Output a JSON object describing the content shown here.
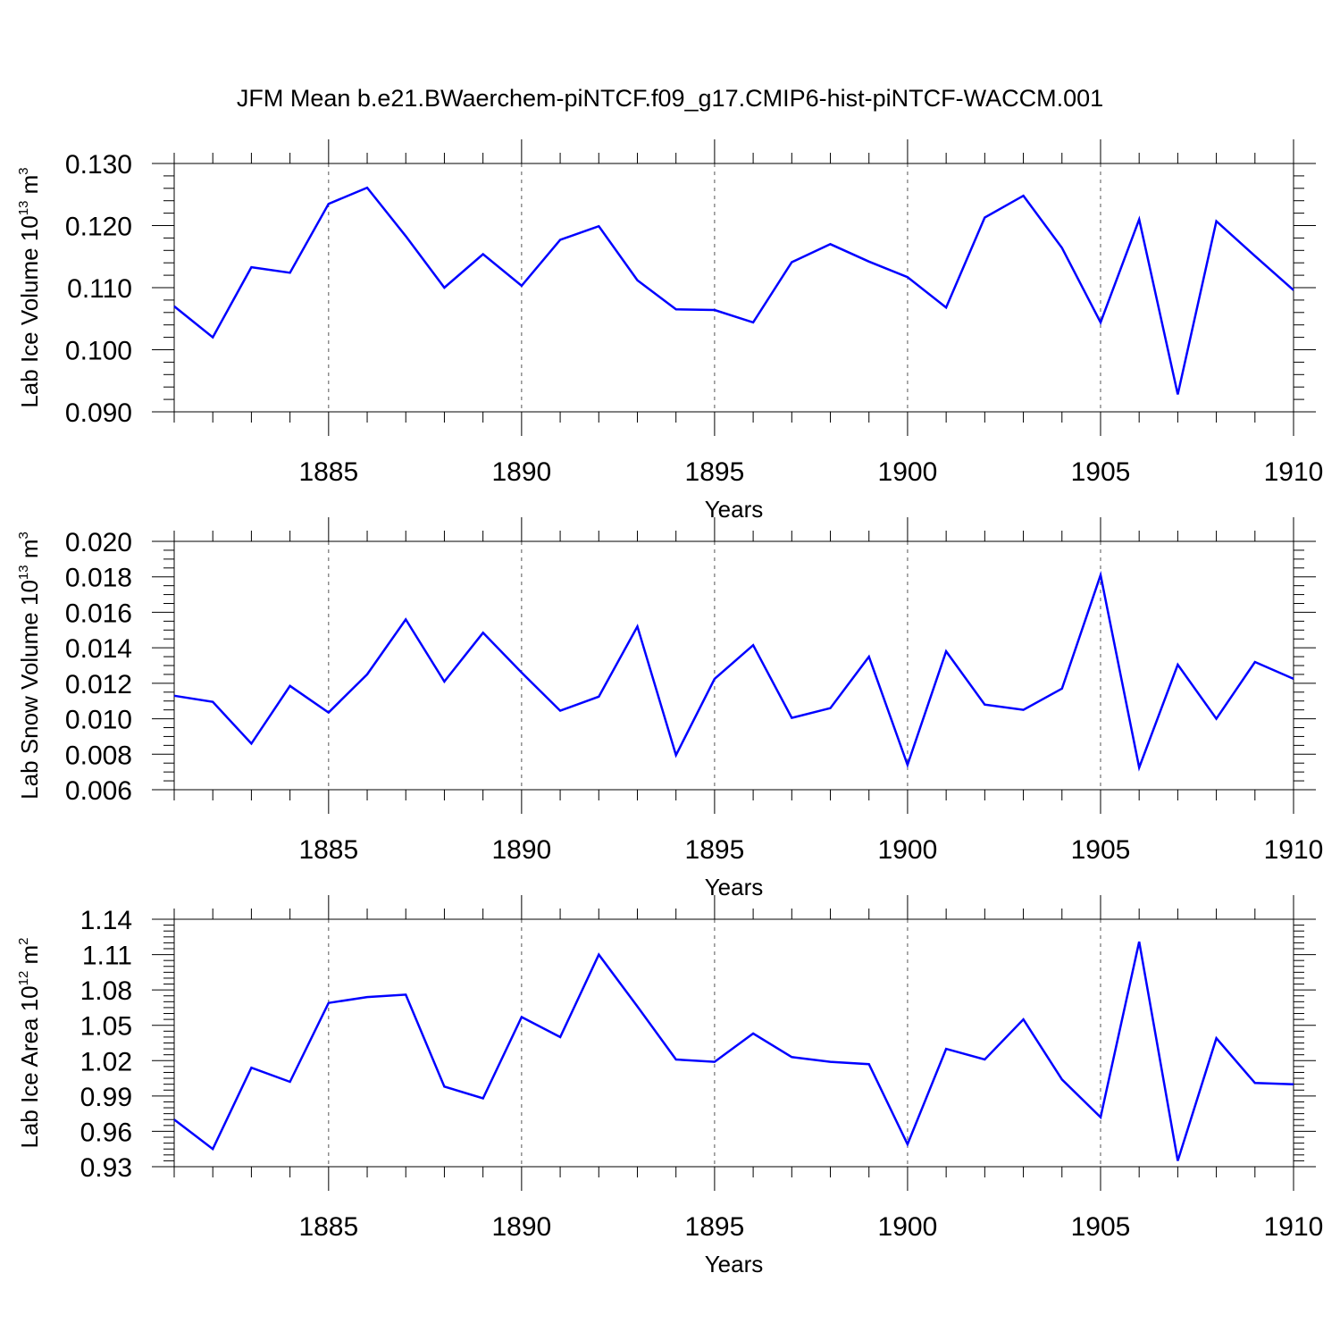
{
  "chart_data": {
    "title": "JFM Mean b.e21.BWaerchem-piNTCF.f09_g17.CMIP6-hist-piNTCF-WACCM.001",
    "type": "line",
    "line_color": "#0000ff",
    "years": [
      1881,
      1882,
      1883,
      1884,
      1885,
      1886,
      1887,
      1888,
      1889,
      1890,
      1891,
      1892,
      1893,
      1894,
      1895,
      1896,
      1897,
      1898,
      1899,
      1900,
      1901,
      1902,
      1903,
      1904,
      1905,
      1906,
      1907,
      1908,
      1909,
      1910
    ],
    "panels": [
      {
        "name": "ice-volume",
        "ylabel_prefix": "Lab Ice Volume 10",
        "ylabel_exponent": "13",
        "ylabel_unit": " m",
        "ylabel_unit_exponent": "3",
        "xlabel": "Years",
        "xlim": [
          1881,
          1910
        ],
        "ylim": [
          0.09,
          0.13
        ],
        "yticks": [
          "0.090",
          "0.100",
          "0.110",
          "0.120",
          "0.130"
        ],
        "ytick_values": [
          0.09,
          0.1,
          0.11,
          0.12,
          0.13
        ],
        "xticks": [
          "1885",
          "1890",
          "1895",
          "1900",
          "1905",
          "1910"
        ],
        "xtick_values": [
          1885,
          1890,
          1895,
          1900,
          1905,
          1910
        ],
        "values": [
          0.107,
          0.102,
          0.1133,
          0.1124,
          0.1235,
          0.1261,
          0.1183,
          0.11,
          0.1154,
          0.1103,
          0.1177,
          0.1199,
          0.1112,
          0.1065,
          0.1064,
          0.1044,
          0.1141,
          0.117,
          0.1142,
          0.1117,
          0.1068,
          0.1213,
          0.1248,
          0.1164,
          0.1044,
          0.121,
          0.0928,
          0.1207,
          0.1151,
          0.1096
        ]
      },
      {
        "name": "snow-volume",
        "ylabel_prefix": "Lab Snow Volume 10",
        "ylabel_exponent": "13",
        "ylabel_unit": " m",
        "ylabel_unit_exponent": "3",
        "xlabel": "Years",
        "xlim": [
          1881,
          1910
        ],
        "ylim": [
          0.006,
          0.02
        ],
        "yticks": [
          "0.006",
          "0.008",
          "0.010",
          "0.012",
          "0.014",
          "0.016",
          "0.018",
          "0.020"
        ],
        "ytick_values": [
          0.006,
          0.008,
          0.01,
          0.012,
          0.014,
          0.016,
          0.018,
          0.02
        ],
        "xticks": [
          "1885",
          "1890",
          "1895",
          "1900",
          "1905",
          "1910"
        ],
        "xtick_values": [
          1885,
          1890,
          1895,
          1900,
          1905,
          1910
        ],
        "values": [
          0.0113,
          0.01095,
          0.0086,
          0.01185,
          0.01035,
          0.0125,
          0.0156,
          0.0121,
          0.01485,
          0.0126,
          0.01045,
          0.01125,
          0.0152,
          0.00795,
          0.01225,
          0.01415,
          0.01005,
          0.0106,
          0.0135,
          0.0074,
          0.0138,
          0.0108,
          0.0105,
          0.0117,
          0.0181,
          0.00725,
          0.01305,
          0.01,
          0.0132,
          0.01225
        ]
      },
      {
        "name": "ice-area",
        "ylabel_prefix": "Lab Ice Area 10",
        "ylabel_exponent": "12",
        "ylabel_unit": " m",
        "ylabel_unit_exponent": "2",
        "xlabel": "Years",
        "xlim": [
          1881,
          1910
        ],
        "ylim": [
          0.93,
          1.14
        ],
        "yticks": [
          "0.93",
          "0.96",
          "0.99",
          "1.02",
          "1.05",
          "1.08",
          "1.11",
          "1.14"
        ],
        "ytick_values": [
          0.93,
          0.96,
          0.99,
          1.02,
          1.05,
          1.08,
          1.11,
          1.14
        ],
        "xticks": [
          "1885",
          "1890",
          "1895",
          "1900",
          "1905",
          "1910"
        ],
        "xtick_values": [
          1885,
          1890,
          1895,
          1900,
          1905,
          1910
        ],
        "values": [
          0.97,
          0.945,
          1.014,
          1.002,
          1.069,
          1.074,
          1.076,
          0.998,
          0.988,
          1.057,
          1.04,
          1.11,
          1.066,
          1.021,
          1.019,
          1.043,
          1.023,
          1.019,
          1.017,
          0.949,
          1.03,
          1.021,
          1.055,
          1.004,
          0.972,
          1.121,
          0.935,
          1.039,
          1.001,
          1.0
        ]
      }
    ]
  }
}
